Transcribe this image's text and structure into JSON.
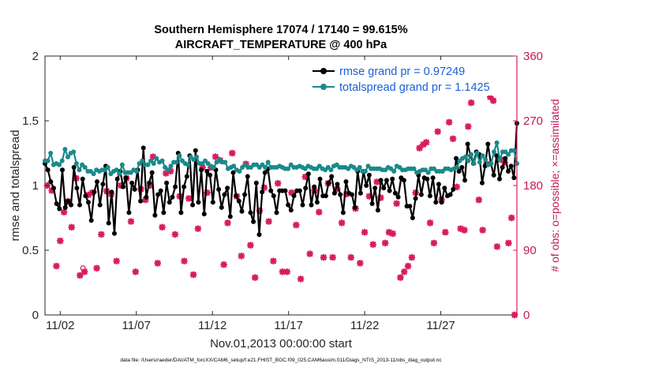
{
  "chart_data": {
    "type": "line",
    "title_line1": "Southern Hemisphere 17074 / 17140 = 99.615%",
    "title_line2": "AIRCRAFT_TEMPERATURE @ 400 hPa",
    "xlabel": "Nov.01,2013 00:00:00 start",
    "ylabel_left": "rmse and totalspread",
    "ylabel_right": "# of obs: o=possible; ×=assimilated",
    "ylim_left": [
      0,
      2
    ],
    "ylim_right": [
      0,
      360
    ],
    "xlim": [
      0,
      31
    ],
    "left_ticks": [
      "0",
      "0.5",
      "1",
      "1.5",
      "2"
    ],
    "left_tick_values": [
      0,
      0.5,
      1,
      1.5,
      2
    ],
    "right_ticks": [
      "0",
      "90",
      "180",
      "270",
      "360"
    ],
    "right_tick_values": [
      0,
      90,
      180,
      270,
      360
    ],
    "x_ticks": [
      "11/02",
      "11/07",
      "11/12",
      "11/17",
      "11/22",
      "11/27"
    ],
    "x_tick_values": [
      1,
      6,
      11,
      16,
      21,
      26
    ],
    "footer": "data file: /Users/raeder/DAI/ATM_forcXX/CAM6_setup/f.e21.FHIST_BGC.f09_025.CAM6assim.011/Diags_NTrS_2013-11/obs_diag_output.nc",
    "series": [
      {
        "name": "rmse grand pr = 0.97249",
        "color": "#000000",
        "values": [
          1.17,
          1.12,
          1.03,
          0.98,
          0.86,
          0.82,
          1.12,
          0.83,
          0.88,
          0.85,
          1.14,
          0.98,
          0.85,
          1.05,
          0.92,
          0.87,
          0.73,
          0.95,
          1.03,
          0.85,
          1.01,
          1.15,
          0.71,
          0.95,
          0.63,
          1.05,
          1.11,
          0.99,
          1.06,
          0.79,
          1.02,
          0.97,
          1.12,
          0.88,
          1.29,
          0.91,
          1.02,
          1.1,
          0.77,
          0.93,
          0.96,
          0.79,
          1.02,
          0.87,
          0.91,
          0.99,
          1.25,
          0.79,
          0.99,
          1.07,
          1.23,
          0.85,
          1.27,
          0.87,
          1.12,
          0.78,
          1.11,
          1.08,
          0.87,
          1.12,
          0.97,
          0.83,
          0.93,
          0.98,
          0.76,
          1.1,
          0.92,
          0.88,
          0.8,
          0.93,
          1.07,
          0.79,
          0.72,
          1.02,
          0.62,
          0.95,
          1.1,
          1.13,
          0.96,
          0.92,
          0.79,
          0.96,
          0.96,
          0.96,
          0.85,
          0.81,
          0.92,
          0.96,
          0.96,
          0.85,
          0.98,
          1.09,
          0.85,
          0.99,
          0.87,
          1.05,
          0.92,
          0.92,
          1.02,
          1.07,
          0.94,
          1.01,
          0.93,
          0.79,
          1.03,
          0.94,
          0.93,
          0.83,
          1.11,
          0.94,
          1.11,
          1.0,
          1.08,
          0.86,
          0.98,
          0.81,
          1.04,
          0.98,
          1.04,
          0.96,
          1.05,
          0.94,
          0.91,
          1.06,
          1.04,
          0.84,
          0.84,
          0.75,
          0.9,
          1.08,
          0.93,
          1.06,
          1.05,
          0.92,
          1.06,
          0.87,
          1.01,
          0.87,
          0.98,
          0.92,
          0.93,
          0.97,
          1.21,
          1.11,
          1.14,
          1.04,
          1.32,
          1.23,
          1.17,
          1.26,
          1.24,
          1.02,
          1.15,
          1.32,
          1.17,
          1.08,
          1.23,
          1.05,
          1.14,
          1.21,
          1.11,
          1.15,
          1.06,
          1.48
        ]
      },
      {
        "name": "totalspread grand pr = 1.1425",
        "color": "#1a8a8a",
        "values": [
          1.19,
          1.19,
          1.25,
          1.16,
          1.17,
          1.16,
          1.19,
          1.28,
          1.22,
          1.25,
          1.26,
          1.17,
          1.12,
          1.16,
          1.14,
          1.11,
          1.11,
          1.09,
          1.12,
          1.11,
          1.12,
          1.12,
          1.14,
          1.09,
          1.11,
          1.12,
          1.09,
          1.16,
          1.1,
          1.1,
          1.1,
          1.12,
          1.11,
          1.17,
          1.19,
          1.16,
          1.16,
          1.19,
          1.17,
          1.21,
          1.18,
          1.19,
          1.14,
          1.12,
          1.15,
          1.18,
          1.18,
          1.23,
          1.19,
          1.17,
          1.16,
          1.22,
          1.2,
          1.22,
          1.17,
          1.17,
          1.19,
          1.17,
          1.15,
          1.14,
          1.18,
          1.2,
          1.18,
          1.18,
          1.13,
          1.14,
          1.15,
          1.12,
          1.11,
          1.14,
          1.16,
          1.14,
          1.14,
          1.16,
          1.16,
          1.14,
          1.16,
          1.14,
          1.18,
          1.14,
          1.14,
          1.14,
          1.15,
          1.14,
          1.13,
          1.13,
          1.16,
          1.14,
          1.14,
          1.15,
          1.14,
          1.13,
          1.15,
          1.14,
          1.13,
          1.13,
          1.15,
          1.13,
          1.12,
          1.14,
          1.12,
          1.15,
          1.16,
          1.14,
          1.14,
          1.14,
          1.13,
          1.15,
          1.14,
          1.12,
          1.14,
          1.11,
          1.11,
          1.15,
          1.13,
          1.13,
          1.13,
          1.13,
          1.12,
          1.12,
          1.14,
          1.13,
          1.11,
          1.15,
          1.14,
          1.12,
          1.12,
          1.13,
          1.13,
          1.13,
          1.1,
          1.11,
          1.12,
          1.12,
          1.1,
          1.13,
          1.13,
          1.11,
          1.11,
          1.11,
          1.13,
          1.13,
          1.12,
          1.13,
          1.14,
          1.19,
          1.21,
          1.22,
          1.19,
          1.24,
          1.17,
          1.25,
          1.18,
          1.23,
          1.2,
          1.16,
          1.17,
          1.26,
          1.33,
          1.2,
          1.26,
          1.26,
          1.24,
          1.27,
          1.27,
          1.17
        ]
      }
    ],
    "obs_possible": [
      {
        "x": 2.5,
        "y": 65
      }
    ],
    "obs_assimilated": [
      {
        "x": 0.15,
        "y": 180
      },
      {
        "x": 0.45,
        "y": 173
      },
      {
        "x": 0.75,
        "y": 68
      },
      {
        "x": 1.0,
        "y": 103
      },
      {
        "x": 1.25,
        "y": 143
      },
      {
        "x": 1.5,
        "y": 158
      },
      {
        "x": 1.75,
        "y": 122
      },
      {
        "x": 2.05,
        "y": 190
      },
      {
        "x": 2.3,
        "y": 55
      },
      {
        "x": 2.6,
        "y": 60
      },
      {
        "x": 2.85,
        "y": 167
      },
      {
        "x": 3.1,
        "y": 170
      },
      {
        "x": 3.4,
        "y": 65
      },
      {
        "x": 3.7,
        "y": 112
      },
      {
        "x": 4.05,
        "y": 172
      },
      {
        "x": 4.35,
        "y": 168
      },
      {
        "x": 4.7,
        "y": 75
      },
      {
        "x": 5.0,
        "y": 180
      },
      {
        "x": 5.35,
        "y": 190
      },
      {
        "x": 5.65,
        "y": 130
      },
      {
        "x": 5.95,
        "y": 60
      },
      {
        "x": 6.3,
        "y": 175
      },
      {
        "x": 6.6,
        "y": 160
      },
      {
        "x": 6.9,
        "y": 180
      },
      {
        "x": 7.1,
        "y": 220
      },
      {
        "x": 7.4,
        "y": 72
      },
      {
        "x": 7.7,
        "y": 122
      },
      {
        "x": 7.95,
        "y": 197
      },
      {
        "x": 8.25,
        "y": 200
      },
      {
        "x": 8.55,
        "y": 112
      },
      {
        "x": 8.85,
        "y": 165
      },
      {
        "x": 9.15,
        "y": 75
      },
      {
        "x": 9.45,
        "y": 162
      },
      {
        "x": 9.75,
        "y": 56
      },
      {
        "x": 10.05,
        "y": 120
      },
      {
        "x": 10.35,
        "y": 205
      },
      {
        "x": 10.65,
        "y": 170
      },
      {
        "x": 10.9,
        "y": 205
      },
      {
        "x": 11.2,
        "y": 220
      },
      {
        "x": 11.5,
        "y": 215
      },
      {
        "x": 11.75,
        "y": 70
      },
      {
        "x": 12.0,
        "y": 128
      },
      {
        "x": 12.3,
        "y": 225
      },
      {
        "x": 12.6,
        "y": 165
      },
      {
        "x": 12.9,
        "y": 82
      },
      {
        "x": 13.2,
        "y": 210
      },
      {
        "x": 13.5,
        "y": 97
      },
      {
        "x": 13.8,
        "y": 52
      },
      {
        "x": 14.1,
        "y": 145
      },
      {
        "x": 14.4,
        "y": 177
      },
      {
        "x": 14.7,
        "y": 130
      },
      {
        "x": 15.0,
        "y": 75
      },
      {
        "x": 15.3,
        "y": 183
      },
      {
        "x": 15.6,
        "y": 60
      },
      {
        "x": 15.9,
        "y": 60
      },
      {
        "x": 16.2,
        "y": 170
      },
      {
        "x": 16.5,
        "y": 125
      },
      {
        "x": 16.8,
        "y": 50
      },
      {
        "x": 17.1,
        "y": 192
      },
      {
        "x": 17.4,
        "y": 85
      },
      {
        "x": 17.7,
        "y": 173
      },
      {
        "x": 18.0,
        "y": 143
      },
      {
        "x": 18.3,
        "y": 80
      },
      {
        "x": 18.6,
        "y": 183
      },
      {
        "x": 18.9,
        "y": 80
      },
      {
        "x": 19.2,
        "y": 175
      },
      {
        "x": 19.5,
        "y": 128
      },
      {
        "x": 19.8,
        "y": 168
      },
      {
        "x": 20.1,
        "y": 80
      },
      {
        "x": 20.4,
        "y": 148
      },
      {
        "x": 20.7,
        "y": 72
      },
      {
        "x": 21.0,
        "y": 115
      },
      {
        "x": 21.3,
        "y": 165
      },
      {
        "x": 21.55,
        "y": 98
      },
      {
        "x": 21.8,
        "y": 185
      },
      {
        "x": 22.05,
        "y": 163
      },
      {
        "x": 22.35,
        "y": 100
      },
      {
        "x": 22.6,
        "y": 115
      },
      {
        "x": 22.85,
        "y": 113
      },
      {
        "x": 23.1,
        "y": 155
      },
      {
        "x": 23.35,
        "y": 52
      },
      {
        "x": 23.6,
        "y": 60
      },
      {
        "x": 23.85,
        "y": 68
      },
      {
        "x": 24.1,
        "y": 80
      },
      {
        "x": 24.35,
        "y": 170
      },
      {
        "x": 24.6,
        "y": 232
      },
      {
        "x": 24.85,
        "y": 237
      },
      {
        "x": 25.05,
        "y": 240
      },
      {
        "x": 25.3,
        "y": 128
      },
      {
        "x": 25.55,
        "y": 100
      },
      {
        "x": 25.8,
        "y": 255
      },
      {
        "x": 26.05,
        "y": 160
      },
      {
        "x": 26.3,
        "y": 115
      },
      {
        "x": 26.55,
        "y": 268
      },
      {
        "x": 26.8,
        "y": 245
      },
      {
        "x": 27.05,
        "y": 178
      },
      {
        "x": 27.3,
        "y": 120
      },
      {
        "x": 27.55,
        "y": 118
      },
      {
        "x": 27.8,
        "y": 262
      },
      {
        "x": 28.0,
        "y": 295
      },
      {
        "x": 28.25,
        "y": 310
      },
      {
        "x": 28.5,
        "y": 160
      },
      {
        "x": 28.75,
        "y": 118
      },
      {
        "x": 29.0,
        "y": 210
      },
      {
        "x": 29.25,
        "y": 303
      },
      {
        "x": 29.45,
        "y": 298
      },
      {
        "x": 29.7,
        "y": 95
      },
      {
        "x": 29.95,
        "y": 216
      },
      {
        "x": 30.2,
        "y": 212
      },
      {
        "x": 30.45,
        "y": 100
      },
      {
        "x": 30.65,
        "y": 135
      },
      {
        "x": 30.85,
        "y": 0
      }
    ]
  }
}
